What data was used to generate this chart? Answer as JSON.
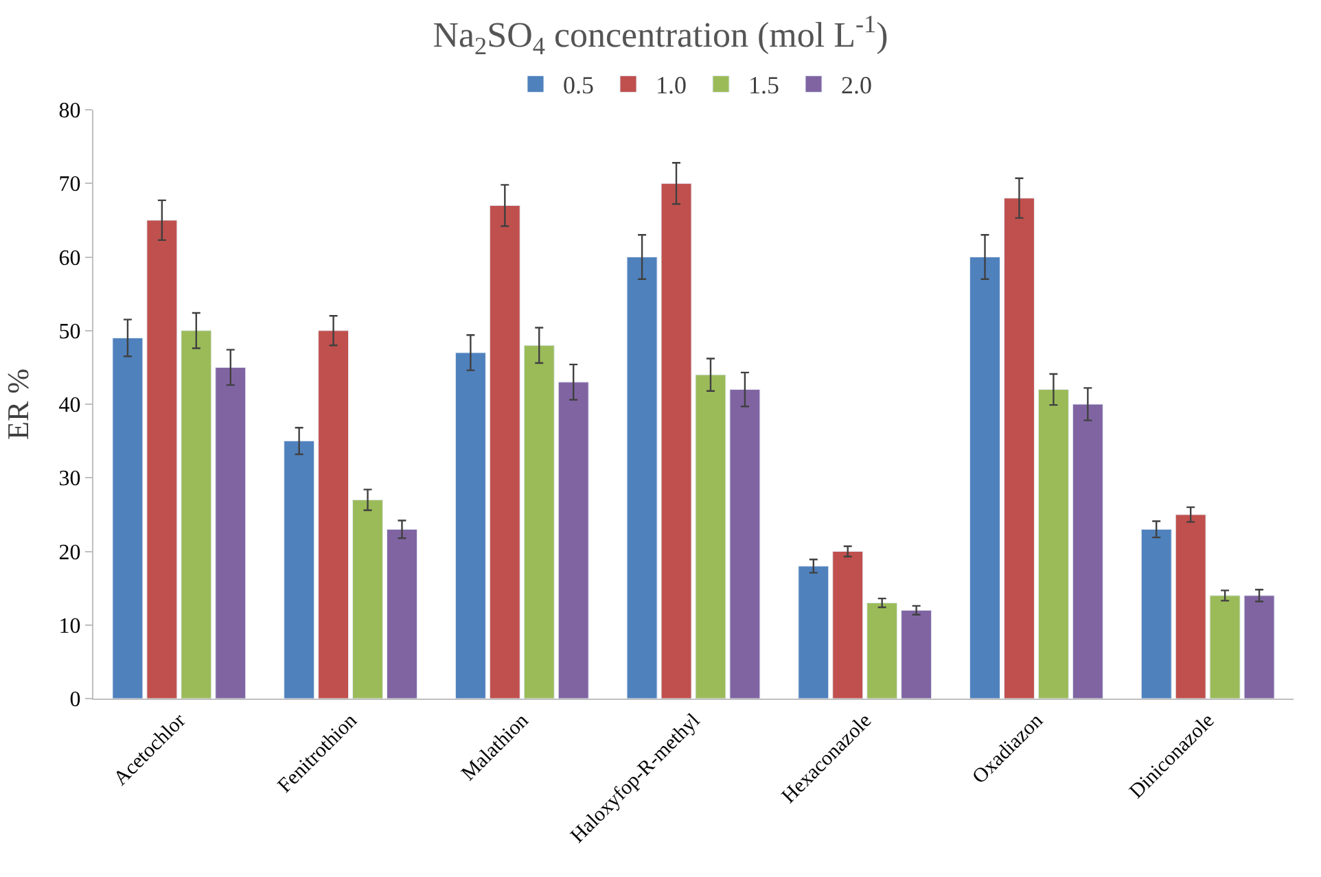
{
  "chart_data": {
    "type": "bar",
    "title": "Na$_{2}$SO$_{4}$ concentration (mol L$^{-1}$)",
    "ylabel": "ER %",
    "categories": [
      "Acetochlor",
      "Fenitrothion",
      "Malathion",
      "Haloxyfop-R-methyl",
      "Hexaconazole",
      "Oxadiazon",
      "Diniconazole"
    ],
    "series": [
      {
        "name": "0.5",
        "color": "#4f81bd",
        "values": [
          49,
          35,
          47,
          60,
          18,
          60,
          23
        ],
        "errors": [
          2.5,
          1.8,
          2.4,
          3,
          0.9,
          3,
          1.1
        ]
      },
      {
        "name": "1.0",
        "color": "#c0504d",
        "values": [
          65,
          50,
          67,
          70,
          20,
          68,
          25
        ],
        "errors": [
          2.7,
          2,
          2.8,
          2.8,
          0.7,
          2.7,
          1
        ]
      },
      {
        "name": "1.5",
        "color": "#9bbb59",
        "values": [
          50,
          27,
          48,
          44,
          13,
          42,
          14
        ],
        "errors": [
          2.4,
          1.4,
          2.4,
          2.2,
          0.6,
          2.1,
          0.7
        ]
      },
      {
        "name": "2.0",
        "color": "#8064a2",
        "values": [
          45,
          23,
          43,
          42,
          12,
          40,
          14
        ],
        "errors": [
          2.4,
          1.2,
          2.4,
          2.3,
          0.6,
          2.2,
          0.8
        ]
      }
    ],
    "ylim": [
      0,
      80
    ],
    "yticks": [
      0,
      10,
      20,
      30,
      40,
      50,
      60,
      70,
      80
    ],
    "legend": "top"
  }
}
